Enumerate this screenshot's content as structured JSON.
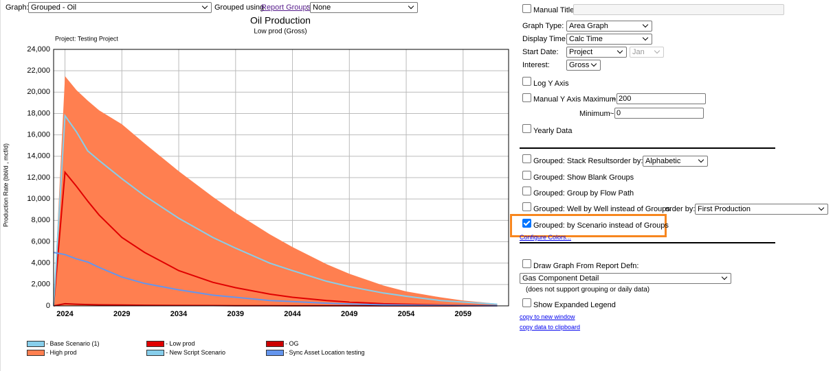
{
  "toolbar": {
    "graph_label": "Graph:",
    "graph_value": "Grouped - Oil",
    "grouped_using": "Grouped using",
    "report_groups_link": "Report Groups",
    "report_groups_suffix": ":",
    "group_value": "None"
  },
  "chart_data": {
    "type": "area",
    "title": "Oil Production",
    "subtitle": "Low prod (Gross)",
    "project_label": "Project: Testing Project",
    "y_label": "Production Rate (bbl/d , mcf/d)",
    "x": [
      2023,
      2024,
      2025,
      2026,
      2027,
      2029,
      2031,
      2034,
      2037,
      2039,
      2042,
      2044,
      2047,
      2049,
      2052,
      2054,
      2057,
      2059,
      2062
    ],
    "series": [
      {
        "name": "Base Scenario (1)",
        "color": "#87ceeb",
        "kind": "area",
        "values": [
          0,
          17500,
          16500,
          null,
          null,
          null,
          null,
          null,
          null,
          null,
          null,
          null,
          null,
          null,
          null,
          null,
          null,
          null,
          null
        ]
      },
      {
        "name": "Low prod",
        "color": "#e00000",
        "kind": "line",
        "values": [
          0,
          12500,
          11200,
          9800,
          8500,
          6400,
          5000,
          3300,
          2200,
          1700,
          1100,
          800,
          500,
          350,
          200,
          150,
          80,
          50,
          20
        ]
      },
      {
        "name": "OG",
        "color": "#cc0000",
        "kind": "line",
        "values": [
          0,
          200,
          150,
          120,
          100,
          80,
          60,
          40,
          30,
          20,
          15,
          10,
          8,
          5,
          3,
          2,
          1,
          1,
          0
        ]
      },
      {
        "name": "High prod",
        "color": "#ff7f50",
        "kind": "area",
        "values": [
          0,
          21500,
          20200,
          19200,
          18300,
          17000,
          15200,
          12600,
          10200,
          8700,
          6700,
          5500,
          3900,
          3000,
          1900,
          1350,
          800,
          500,
          200
        ]
      },
      {
        "name": "New Script Scenario",
        "color": "#87ceeb",
        "kind": "line",
        "values": [
          0,
          17800,
          16300,
          14500,
          13600,
          11900,
          10300,
          8200,
          6400,
          5400,
          4000,
          3300,
          2300,
          1800,
          1200,
          900,
          500,
          350,
          150
        ]
      },
      {
        "name": "Sync Asset Location testing",
        "color": "#6495ed",
        "kind": "line",
        "values": [
          5000,
          4800,
          4400,
          4100,
          3600,
          2700,
          2100,
          1500,
          1000,
          800,
          500,
          400,
          250,
          180,
          100,
          70,
          40,
          25,
          10
        ]
      }
    ],
    "xlim": [
      2023,
      2063
    ],
    "xticks": [
      2024,
      2029,
      2034,
      2039,
      2044,
      2049,
      2054,
      2059
    ],
    "ylim": [
      0,
      24000
    ],
    "yticks": [
      0,
      {
        "value": 2000,
        "label": "2,000"
      },
      {
        "value": 4000,
        "label": "4,000"
      },
      {
        "value": 6000,
        "label": "6,000"
      },
      {
        "value": 8000,
        "label": "8,000"
      },
      {
        "value": 10000,
        "label": "10,000"
      },
      {
        "value": 12000,
        "label": "12,000"
      },
      {
        "value": 14000,
        "label": "14,000"
      },
      {
        "value": 16000,
        "label": "16,000"
      },
      {
        "value": 18000,
        "label": "18,000"
      },
      {
        "value": 20000,
        "label": "20,000"
      },
      {
        "value": 22000,
        "label": "22,000"
      },
      {
        "value": 24000,
        "label": "24,000"
      }
    ],
    "grid": true
  },
  "options": {
    "manual_title": {
      "label": "Manual Title",
      "checked": false
    },
    "graph_type": {
      "label": "Graph Type:",
      "value": "Area Graph"
    },
    "display_time": {
      "label": "Display Time:",
      "value": "Calc Time"
    },
    "start_date": {
      "label": "Start Date:",
      "value": "Project",
      "month": "Jan"
    },
    "interest": {
      "label": "Interest:",
      "value": "Gross"
    },
    "log_y": {
      "label": "Log Y Axis",
      "checked": false
    },
    "manual_y_max": {
      "label": "Manual Y Axis Maximum",
      "checked": false,
      "tilde": "~",
      "value": "200"
    },
    "minimum": {
      "label": "Minimum",
      "tilde": "~",
      "value": "0"
    },
    "yearly": {
      "label": "Yearly Data",
      "checked": false
    },
    "stack": {
      "label": "Grouped: Stack Results",
      "checked": false,
      "order_label": "order by:",
      "order_value": "Alphabetic"
    },
    "blank_groups": {
      "label": "Grouped: Show Blank Groups",
      "checked": false
    },
    "flow_path": {
      "label": "Grouped: Group by Flow Path",
      "checked": false
    },
    "well_by_well": {
      "label": "Grouped: Well by Well instead of Groups",
      "checked": false,
      "order_label": "order by:",
      "order_value": "First Production"
    },
    "by_scenario": {
      "label": "Grouped: by Scenario instead of Groups",
      "checked": true
    },
    "configure_colors": "Configure Colors...",
    "report_defn": {
      "label": "Draw Graph From Report Defn:",
      "checked": false,
      "value": "Gas Component Detail",
      "note": "(does not support grouping or daily data)"
    },
    "expanded_legend": {
      "label": "Show Expanded Legend",
      "checked": false
    },
    "copy_window": "copy to new window",
    "copy_clipboard": "copy data to clipboard"
  }
}
